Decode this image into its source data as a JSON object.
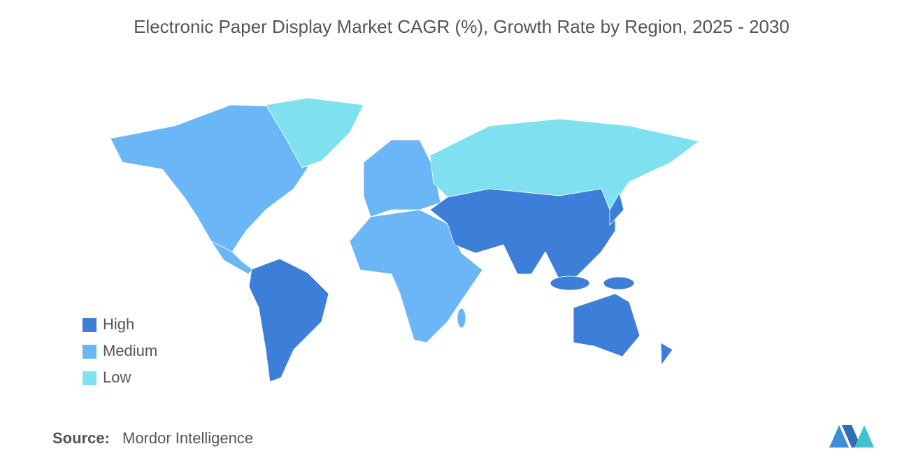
{
  "title": "Electronic Paper Display Market CAGR (%), Growth Rate by Region, 2025 - 2030",
  "legend": [
    {
      "label": "High",
      "color": "#3d7fd8"
    },
    {
      "label": "Medium",
      "color": "#6bb6f6"
    },
    {
      "label": "Low",
      "color": "#7fe1ef"
    }
  ],
  "source": {
    "label": "Source:",
    "text": "Mordor Intelligence"
  }
}
